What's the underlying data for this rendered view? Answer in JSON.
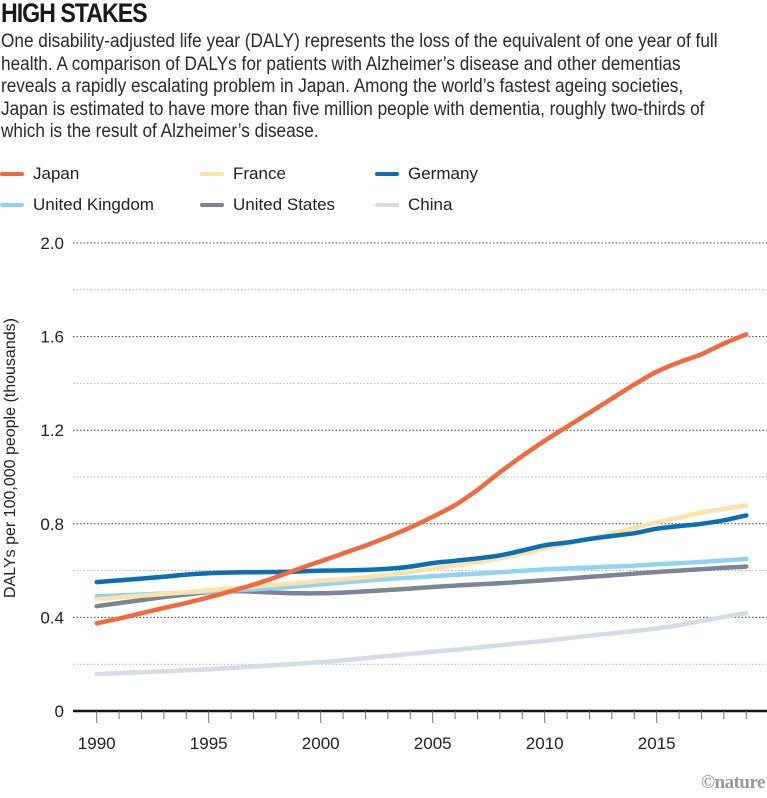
{
  "header": {
    "title": "HIGH STAKES",
    "subtitle": "One disability-adjusted life year (DALY) represents the loss of the equivalent of one year of full health. A comparison of DALYs for patients with Alzheimer’s disease and other dementias reveals a rapidly escalating problem in Japan. Among the world’s fastest ageing societies, Japan is estimated to have more than five million people with dementia, roughly two-thirds of which is the result of Alzheimer’s disease."
  },
  "credit": "©nature",
  "chart_data": {
    "type": "line",
    "title": "HIGH STAKES",
    "xlabel": "",
    "ylabel": "DALYs per 100,000 people (thousands)",
    "xlim": [
      1990,
      2019
    ],
    "ylim": [
      0,
      2.0
    ],
    "x_ticks": [
      1990,
      1995,
      2000,
      2005,
      2010,
      2015
    ],
    "x_tick_labels": [
      "1990",
      "1995",
      "2000",
      "2005",
      "2010",
      "2015"
    ],
    "y_ticks": [
      0,
      0.4,
      0.8,
      1.2,
      1.6,
      2.0
    ],
    "y_tick_labels": [
      "0",
      "0.4",
      "0.8",
      "1.2",
      "1.6",
      "2.0"
    ],
    "y_minor_ticks": [
      0.2,
      0.6,
      1.0,
      1.4,
      1.8
    ],
    "grid": true,
    "legend_position": "top-left",
    "x": [
      1990,
      1991,
      1992,
      1993,
      1994,
      1995,
      1996,
      1997,
      1998,
      1999,
      2000,
      2001,
      2002,
      2003,
      2004,
      2005,
      2006,
      2007,
      2008,
      2009,
      2010,
      2011,
      2012,
      2013,
      2014,
      2015,
      2016,
      2017,
      2018,
      2019
    ],
    "series": [
      {
        "name": "Japan",
        "color": "#f26a3b",
        "values": [
          0.375,
          0.395,
          0.418,
          0.44,
          0.462,
          0.486,
          0.512,
          0.54,
          0.572,
          0.607,
          0.64,
          0.673,
          0.707,
          0.744,
          0.784,
          0.83,
          0.88,
          0.945,
          1.02,
          1.09,
          1.155,
          1.215,
          1.275,
          1.335,
          1.395,
          1.45,
          1.49,
          1.525,
          1.57,
          1.61
        ]
      },
      {
        "name": "France",
        "color": "#fde3a7",
        "values": [
          0.477,
          0.485,
          0.493,
          0.5,
          0.508,
          0.516,
          0.524,
          0.532,
          0.54,
          0.547,
          0.556,
          0.563,
          0.572,
          0.582,
          0.594,
          0.608,
          0.622,
          0.636,
          0.652,
          0.672,
          0.694,
          0.715,
          0.737,
          0.759,
          0.782,
          0.807,
          0.826,
          0.848,
          0.864,
          0.878
        ]
      },
      {
        "name": "Germany",
        "color": "#0a6fb5",
        "values": [
          0.551,
          0.558,
          0.566,
          0.574,
          0.583,
          0.589,
          0.592,
          0.593,
          0.594,
          0.596,
          0.6,
          0.601,
          0.603,
          0.608,
          0.617,
          0.632,
          0.642,
          0.652,
          0.665,
          0.686,
          0.708,
          0.72,
          0.735,
          0.748,
          0.76,
          0.779,
          0.79,
          0.8,
          0.815,
          0.836
        ]
      },
      {
        "name": "United Kingdom",
        "color": "#8fd3f5",
        "values": [
          0.49,
          0.494,
          0.498,
          0.502,
          0.506,
          0.51,
          0.515,
          0.52,
          0.526,
          0.533,
          0.541,
          0.549,
          0.557,
          0.564,
          0.57,
          0.576,
          0.582,
          0.587,
          0.593,
          0.599,
          0.605,
          0.609,
          0.613,
          0.617,
          0.621,
          0.627,
          0.632,
          0.637,
          0.643,
          0.65
        ]
      },
      {
        "name": "United States",
        "color": "#7b8594",
        "values": [
          0.448,
          0.461,
          0.474,
          0.487,
          0.498,
          0.508,
          0.512,
          0.51,
          0.506,
          0.503,
          0.503,
          0.506,
          0.511,
          0.517,
          0.523,
          0.53,
          0.536,
          0.541,
          0.546,
          0.552,
          0.559,
          0.566,
          0.573,
          0.58,
          0.587,
          0.594,
          0.6,
          0.606,
          0.612,
          0.617
        ]
      },
      {
        "name": "China",
        "color": "#d3dee7",
        "values": [
          0.158,
          0.162,
          0.166,
          0.17,
          0.174,
          0.178,
          0.184,
          0.19,
          0.196,
          0.202,
          0.209,
          0.217,
          0.226,
          0.235,
          0.244,
          0.253,
          0.262,
          0.271,
          0.281,
          0.291,
          0.3,
          0.311,
          0.322,
          0.332,
          0.342,
          0.353,
          0.367,
          0.384,
          0.402,
          0.419
        ]
      }
    ]
  }
}
